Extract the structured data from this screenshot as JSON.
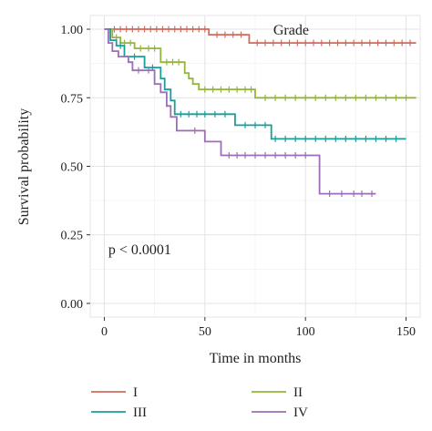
{
  "chart_data": {
    "type": "line",
    "title": "",
    "xlabel": "Time in months",
    "ylabel": "Survival probability",
    "xlim": [
      -7,
      157
    ],
    "ylim": [
      -0.05,
      1.05
    ],
    "xticks": [
      0,
      50,
      100,
      150
    ],
    "yticks": [
      0.0,
      0.25,
      0.5,
      0.75,
      1.0
    ],
    "ytick_labels": [
      "0.00",
      "0.25",
      "0.50",
      "0.75",
      "1.00"
    ],
    "grid": true,
    "annotations": [
      {
        "text": "Grade",
        "x": 84,
        "y": 1.0
      },
      {
        "text": "p < 0.0001",
        "x": 2,
        "y": 0.2
      }
    ],
    "legend": {
      "placement": "bottom"
    },
    "series": [
      {
        "name": "I",
        "color": "#d16b5c",
        "steps": [
          [
            0,
            1.0
          ],
          [
            52,
            0.98
          ],
          [
            72,
            0.95
          ],
          [
            155,
            0.95
          ]
        ],
        "censor": [
          5,
          8,
          11,
          14,
          17,
          20,
          23,
          26,
          29,
          32,
          35,
          38,
          41,
          44,
          47,
          50,
          56,
          60,
          64,
          68,
          76,
          80,
          84,
          88,
          92,
          96,
          100,
          104,
          108,
          112,
          116,
          120,
          124,
          128,
          132,
          136,
          140,
          144,
          148,
          152
        ]
      },
      {
        "name": "II",
        "color": "#93b63a",
        "steps": [
          [
            0,
            1.0
          ],
          [
            4,
            0.97
          ],
          [
            8,
            0.95
          ],
          [
            15,
            0.93
          ],
          [
            28,
            0.88
          ],
          [
            40,
            0.84
          ],
          [
            42,
            0.82
          ],
          [
            44,
            0.8
          ],
          [
            47,
            0.78
          ],
          [
            75,
            0.75
          ],
          [
            155,
            0.75
          ]
        ],
        "censor": [
          6,
          10,
          13,
          18,
          22,
          25,
          31,
          34,
          37,
          50,
          54,
          58,
          62,
          66,
          70,
          73,
          80,
          85,
          90,
          95,
          100,
          105,
          110,
          115,
          120,
          125,
          130,
          135,
          140,
          145,
          150
        ]
      },
      {
        "name": "III",
        "color": "#1a9e99",
        "steps": [
          [
            0,
            1.0
          ],
          [
            3,
            0.96
          ],
          [
            6,
            0.94
          ],
          [
            10,
            0.9
          ],
          [
            20,
            0.86
          ],
          [
            28,
            0.82
          ],
          [
            30,
            0.78
          ],
          [
            33,
            0.74
          ],
          [
            35,
            0.69
          ],
          [
            65,
            0.65
          ],
          [
            83,
            0.6
          ],
          [
            150,
            0.6
          ]
        ],
        "censor": [
          8,
          15,
          24,
          38,
          42,
          46,
          50,
          55,
          60,
          70,
          75,
          80,
          85,
          90,
          95,
          100,
          105,
          110,
          115,
          120,
          125,
          130,
          135,
          140,
          145
        ]
      },
      {
        "name": "IV",
        "color": "#9b6fb8",
        "steps": [
          [
            0,
            1.0
          ],
          [
            2,
            0.95
          ],
          [
            4,
            0.92
          ],
          [
            7,
            0.9
          ],
          [
            12,
            0.88
          ],
          [
            14,
            0.85
          ],
          [
            25,
            0.8
          ],
          [
            28,
            0.77
          ],
          [
            31,
            0.72
          ],
          [
            33,
            0.68
          ],
          [
            36,
            0.63
          ],
          [
            50,
            0.59
          ],
          [
            58,
            0.54
          ],
          [
            107,
            0.4
          ],
          [
            135,
            0.4
          ]
        ],
        "censor": [
          17,
          22,
          45,
          62,
          66,
          70,
          75,
          80,
          85,
          90,
          95,
          100,
          112,
          118,
          124,
          128,
          133
        ]
      }
    ]
  }
}
